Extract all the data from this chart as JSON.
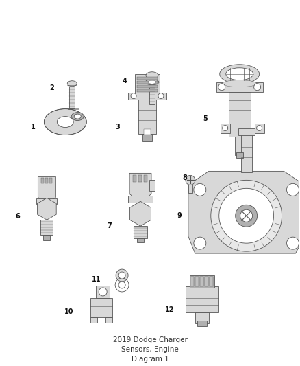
{
  "title": "2019 Dodge Charger\nSensors, Engine\nDiagram 1",
  "background_color": "#ffffff",
  "line_color": "#555555",
  "label_color": "#111111",
  "label_fontsize": 7,
  "title_fontsize": 7.5,
  "title_color": "#333333",
  "fill_light": "#d8d8d8",
  "fill_white": "#ffffff",
  "fill_mid": "#b0b0b0",
  "lw": 0.6
}
